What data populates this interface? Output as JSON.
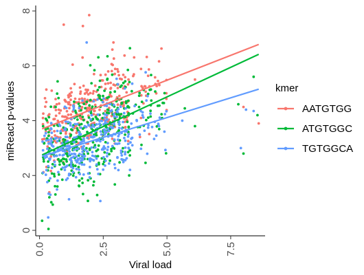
{
  "chart_data": {
    "type": "scatter",
    "title": "",
    "xlabel": "Viral load",
    "ylabel": "miReact p-values",
    "xlim": [
      -0.15,
      8.85
    ],
    "ylim": [
      -0.2,
      8.2
    ],
    "x_ticks": [
      0.0,
      2.5,
      5.0,
      7.5
    ],
    "x_tick_labels": [
      "0.0",
      "2.5",
      "5.0",
      "7.5"
    ],
    "y_ticks": [
      0,
      2,
      4,
      6,
      8
    ],
    "y_tick_labels": [
      "0",
      "2",
      "4",
      "6",
      "8"
    ],
    "grid": false,
    "legend": {
      "title": "kmer",
      "position": "right"
    },
    "series": [
      {
        "name": "AATGTGG",
        "color": "#F8766D",
        "trend": {
          "x": [
            0.1,
            8.6
          ],
          "y": [
            3.7,
            6.78
          ]
        },
        "spread": 0.75,
        "clusters": [
          {
            "x_range": [
              0.1,
              1.0
            ],
            "count": 60
          },
          {
            "x_range": [
              1.0,
              3.5
            ],
            "count": 240
          },
          {
            "x_range": [
              3.5,
              5.0
            ],
            "count": 30
          }
        ],
        "extras": [
          {
            "x": 1.95,
            "y": 7.85
          },
          {
            "x": 1.7,
            "y": 7.45
          },
          {
            "x": 0.95,
            "y": 7.5
          },
          {
            "x": 6.1,
            "y": 5.5
          },
          {
            "x": 8.6,
            "y": 3.9
          },
          {
            "x": 8.0,
            "y": 4.5
          },
          {
            "x": 4.7,
            "y": 5.3
          },
          {
            "x": 2.9,
            "y": 6.85
          }
        ]
      },
      {
        "name": "ATGTGGC",
        "color": "#00BA38",
        "trend": {
          "x": [
            0.1,
            8.6
          ],
          "y": [
            2.75,
            6.42
          ]
        },
        "spread": 0.95,
        "clusters": [
          {
            "x_range": [
              0.1,
              1.0
            ],
            "count": 70
          },
          {
            "x_range": [
              1.0,
              3.5
            ],
            "count": 260
          },
          {
            "x_range": [
              3.5,
              5.0
            ],
            "count": 40
          }
        ],
        "extras": [
          {
            "x": 0.1,
            "y": 0.35
          },
          {
            "x": 0.35,
            "y": 0.05
          },
          {
            "x": 8.4,
            "y": 5.6
          },
          {
            "x": 8.55,
            "y": 4.2
          },
          {
            "x": 7.8,
            "y": 4.6
          },
          {
            "x": 5.7,
            "y": 4.45
          },
          {
            "x": 6.1,
            "y": 3.8
          },
          {
            "x": 8.0,
            "y": 2.8
          },
          {
            "x": 4.7,
            "y": 4.55
          }
        ]
      },
      {
        "name": "TGTGGCA",
        "color": "#619CFF",
        "trend": {
          "x": [
            0.1,
            8.6
          ],
          "y": [
            2.7,
            5.15
          ]
        },
        "spread": 0.7,
        "clusters": [
          {
            "x_range": [
              0.1,
              1.0
            ],
            "count": 70
          },
          {
            "x_range": [
              1.0,
              3.5
            ],
            "count": 260
          },
          {
            "x_range": [
              3.5,
              5.0
            ],
            "count": 35
          }
        ],
        "extras": [
          {
            "x": 7.9,
            "y": 3.0
          },
          {
            "x": 8.1,
            "y": 4.4
          },
          {
            "x": 8.4,
            "y": 4.35
          },
          {
            "x": 5.6,
            "y": 4.0
          },
          {
            "x": 1.85,
            "y": 6.85
          },
          {
            "x": 4.9,
            "y": 3.6
          }
        ]
      }
    ]
  }
}
